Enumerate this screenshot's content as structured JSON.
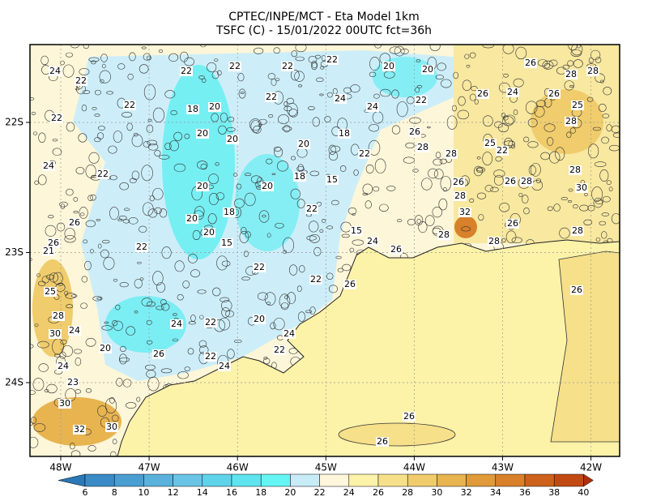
{
  "header": {
    "title": "CPTEC/INPE/MCT -  Eta Model 1km",
    "subtitle": "TSFC (C) - 15/01/2022 00UTC fct=36h"
  },
  "axes": {
    "longitude": [
      "48W",
      "47W",
      "46W",
      "45W",
      "44W",
      "43W",
      "42W"
    ],
    "latitude": [
      "22S",
      "23S",
      "24S"
    ]
  },
  "colorbar": {
    "ticks": [
      6,
      8,
      10,
      12,
      14,
      16,
      18,
      20,
      22,
      24,
      26,
      28,
      30,
      32,
      34,
      36,
      38,
      40
    ],
    "colors": [
      "#2a78b6",
      "#3a8bc6",
      "#4a9ed2",
      "#5ab2dc",
      "#6ac4e6",
      "#5fd3ea",
      "#5ee4ef",
      "#66f5f5",
      "#c8ecf7",
      "#fff6dc",
      "#fcf2a8",
      "#f6e08a",
      "#f0cc6c",
      "#e8b450",
      "#e09a3a",
      "#d8802a",
      "#cc621c",
      "#c24a12",
      "#b03008"
    ]
  },
  "contour_labels": [
    24,
    22,
    22,
    22,
    22,
    22,
    20,
    20,
    26,
    28,
    28,
    22,
    22,
    18,
    20,
    22,
    24,
    24,
    22,
    26,
    24,
    26,
    25,
    28,
    20,
    20,
    20,
    18,
    22,
    26,
    28,
    28,
    25,
    22,
    28,
    24,
    22,
    18,
    15,
    20,
    20,
    26,
    28,
    26,
    28,
    30,
    26,
    20,
    18,
    22,
    32,
    26,
    28,
    26,
    21,
    22,
    20,
    15,
    15,
    24,
    26,
    28,
    28,
    22,
    22,
    26,
    26,
    25,
    28,
    30,
    24,
    22,
    20,
    24,
    20,
    24,
    26,
    22,
    24,
    22,
    24,
    23,
    30,
    32,
    30,
    26,
    26
  ]
}
